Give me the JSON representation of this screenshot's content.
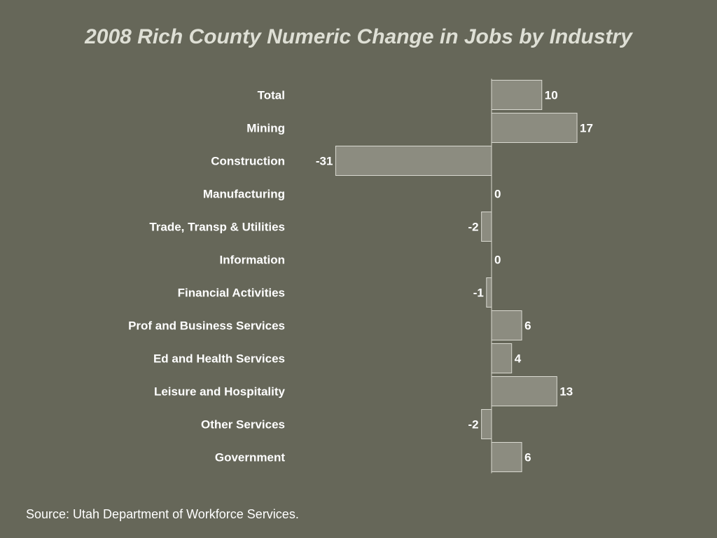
{
  "title": "2008 Rich County Numeric Change in Jobs by Industry",
  "source": "Source: Utah Department of Workforce Services.",
  "colors": {
    "background": "#666759",
    "bar_fill": "#8c8c80",
    "bar_stroke": "#d9d9d0",
    "text": "#ffffff",
    "title": "#dedfd5"
  },
  "chart_data": {
    "type": "bar",
    "orientation": "horizontal",
    "title": "2008 Rich County Numeric Change in Jobs by Industry",
    "xlabel": "",
    "ylabel": "",
    "xlim": [
      -31,
      17
    ],
    "grid": false,
    "legend": "none",
    "categories": [
      "Total",
      "Mining",
      "Construction",
      "Manufacturing",
      "Trade, Transp & Utilities",
      "Information",
      "Financial Activities",
      "Prof and Business Services",
      "Ed and Health Services",
      "Leisure and Hospitality",
      "Other Services",
      "Government"
    ],
    "values": [
      10,
      17,
      -31,
      0,
      -2,
      0,
      -1,
      6,
      4,
      13,
      -2,
      6
    ]
  }
}
